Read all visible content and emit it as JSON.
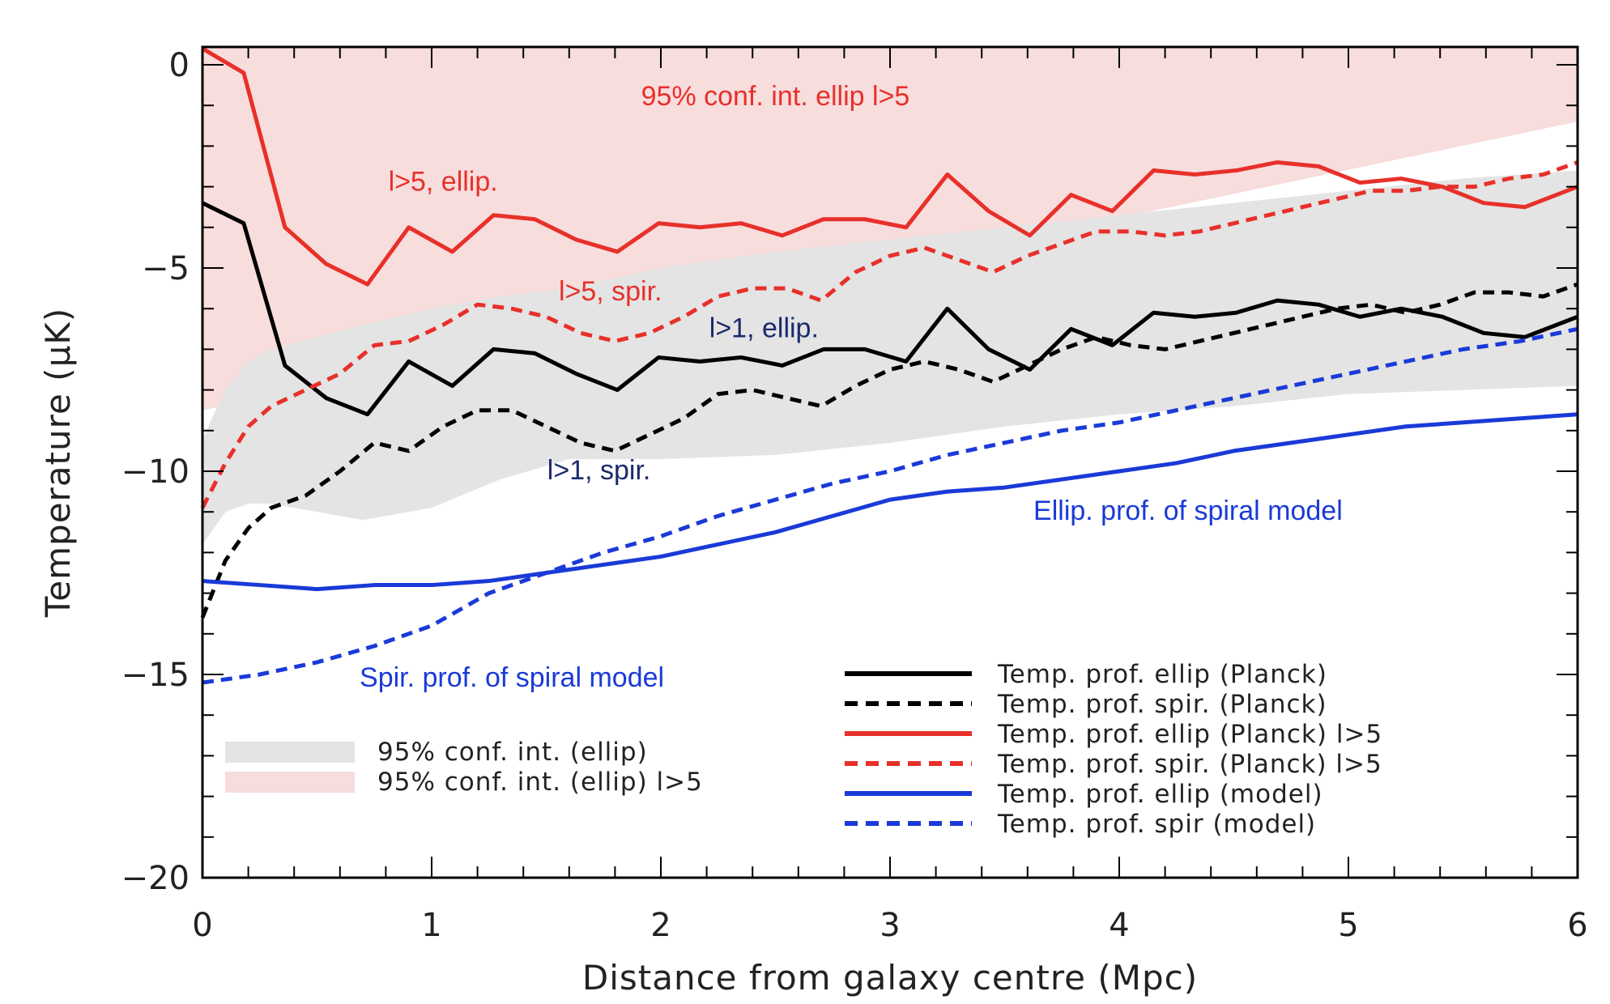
{
  "chart_data": {
    "type": "line",
    "title": "",
    "xlabel": "Distance from galaxy centre (Mpc)",
    "ylabel": "Temperature  (μK)",
    "xlim": [
      0,
      6
    ],
    "ylim": [
      -20,
      0.5
    ],
    "xticks": [
      0,
      1,
      2,
      3,
      4,
      5,
      6
    ],
    "yticks": [
      0,
      -5,
      -10,
      -15,
      -20
    ],
    "xtick_labels": [
      "0",
      "1",
      "2",
      "3",
      "4",
      "5",
      "6"
    ],
    "ytick_labels": [
      "0",
      "−5",
      "−10",
      "−15",
      "−20"
    ],
    "grid": false,
    "bands": [
      {
        "name": "95% conf. int. (ellip) l>5",
        "color": "#f8dddd",
        "x": [
          0,
          6
        ],
        "upper": [
          0.5,
          0.5
        ],
        "lower": [
          -8.5,
          -1.4
        ]
      },
      {
        "name": "95% conf. int. (ellip)",
        "color": "#e4e4e4",
        "x": [
          0,
          0.1,
          0.2,
          0.3,
          0.5,
          0.7,
          1.0,
          1.3,
          1.6,
          2.0,
          2.5,
          3.0,
          3.5,
          4.0,
          4.5,
          5.0,
          5.5,
          6.0
        ],
        "upper": [
          -9.2,
          -8.0,
          -7.3,
          -7.0,
          -6.7,
          -6.4,
          -6.0,
          -5.7,
          -5.5,
          -5.0,
          -4.6,
          -4.3,
          -4.0,
          -3.7,
          -3.4,
          -3.1,
          -2.8,
          -2.6
        ],
        "lower": [
          -11.8,
          -11.0,
          -10.8,
          -10.8,
          -11.0,
          -11.2,
          -10.9,
          -10.2,
          -9.7,
          -9.7,
          -9.6,
          -9.3,
          -8.9,
          -8.6,
          -8.4,
          -8.1,
          -8.0,
          -7.9
        ]
      }
    ],
    "series": [
      {
        "name": "Temp. prof. ellip (Planck)",
        "color": "#000000",
        "dash": false,
        "x": [
          0,
          0.18,
          0.36,
          0.54,
          0.72,
          0.9,
          1.09,
          1.27,
          1.45,
          1.63,
          1.81,
          1.99,
          2.17,
          2.35,
          2.53,
          2.71,
          2.89,
          3.07,
          3.25,
          3.43,
          3.61,
          3.79,
          3.97,
          4.15,
          4.33,
          4.51,
          4.69,
          4.87,
          5.05,
          5.23,
          5.41,
          5.59,
          5.77,
          6.0
        ],
        "y": [
          -3.4,
          -3.9,
          -7.4,
          -8.2,
          -8.6,
          -7.3,
          -7.9,
          -7.0,
          -7.1,
          -7.6,
          -8.0,
          -7.2,
          -7.3,
          -7.2,
          -7.4,
          -7.0,
          -7.0,
          -7.3,
          -6.0,
          -7.0,
          -7.5,
          -6.5,
          -6.9,
          -6.1,
          -6.2,
          -6.1,
          -5.8,
          -5.9,
          -6.2,
          -6.0,
          -6.2,
          -6.6,
          -6.7,
          -6.2
        ]
      },
      {
        "name": "Temp. prof. spir. (Planck)",
        "color": "#000000",
        "dash": true,
        "x": [
          0,
          0.1,
          0.2,
          0.3,
          0.45,
          0.6,
          0.75,
          0.9,
          1.05,
          1.2,
          1.35,
          1.5,
          1.65,
          1.8,
          1.95,
          2.1,
          2.25,
          2.4,
          2.55,
          2.7,
          2.85,
          3.0,
          3.15,
          3.3,
          3.45,
          3.6,
          3.75,
          3.9,
          4.05,
          4.2,
          4.35,
          4.5,
          4.65,
          4.8,
          4.95,
          5.1,
          5.25,
          5.4,
          5.55,
          5.7,
          5.85,
          6.0
        ],
        "y": [
          -13.6,
          -12.2,
          -11.4,
          -10.9,
          -10.6,
          -10.0,
          -9.3,
          -9.5,
          -8.9,
          -8.5,
          -8.5,
          -8.9,
          -9.3,
          -9.5,
          -9.1,
          -8.7,
          -8.1,
          -8.0,
          -8.2,
          -8.4,
          -7.9,
          -7.5,
          -7.3,
          -7.5,
          -7.8,
          -7.4,
          -7.0,
          -6.7,
          -6.9,
          -7.0,
          -6.8,
          -6.6,
          -6.4,
          -6.2,
          -6.0,
          -5.9,
          -6.1,
          -5.9,
          -5.6,
          -5.6,
          -5.7,
          -5.4
        ]
      },
      {
        "name": "Temp. prof. ellip (Planck) l>5",
        "color": "#e8302a",
        "dash": false,
        "x": [
          0,
          0.18,
          0.36,
          0.54,
          0.72,
          0.9,
          1.09,
          1.27,
          1.45,
          1.63,
          1.81,
          1.99,
          2.17,
          2.35,
          2.53,
          2.71,
          2.89,
          3.07,
          3.25,
          3.43,
          3.61,
          3.79,
          3.97,
          4.15,
          4.33,
          4.51,
          4.69,
          4.87,
          5.05,
          5.23,
          5.41,
          5.59,
          5.77,
          6.0
        ],
        "y": [
          0.4,
          -0.2,
          -4.0,
          -4.9,
          -5.4,
          -4.0,
          -4.6,
          -3.7,
          -3.8,
          -4.3,
          -4.6,
          -3.9,
          -4.0,
          -3.9,
          -4.2,
          -3.8,
          -3.8,
          -4.0,
          -2.7,
          -3.6,
          -4.2,
          -3.2,
          -3.6,
          -2.6,
          -2.7,
          -2.6,
          -2.4,
          -2.5,
          -2.9,
          -2.8,
          -3.0,
          -3.4,
          -3.5,
          -3.0
        ]
      },
      {
        "name": "Temp. prof. spir. (Planck) l>5",
        "color": "#e8302a",
        "dash": true,
        "x": [
          0,
          0.1,
          0.2,
          0.3,
          0.45,
          0.6,
          0.75,
          0.9,
          1.05,
          1.2,
          1.35,
          1.5,
          1.65,
          1.8,
          1.95,
          2.1,
          2.25,
          2.4,
          2.55,
          2.7,
          2.85,
          3.0,
          3.15,
          3.3,
          3.45,
          3.6,
          3.75,
          3.9,
          4.05,
          4.2,
          4.35,
          4.5,
          4.65,
          4.8,
          4.95,
          5.1,
          5.25,
          5.4,
          5.55,
          5.7,
          5.85,
          6.0
        ],
        "y": [
          -10.9,
          -9.8,
          -8.9,
          -8.4,
          -8.0,
          -7.6,
          -6.9,
          -6.8,
          -6.4,
          -5.9,
          -6.0,
          -6.2,
          -6.6,
          -6.8,
          -6.6,
          -6.2,
          -5.7,
          -5.5,
          -5.5,
          -5.8,
          -5.1,
          -4.7,
          -4.5,
          -4.8,
          -5.1,
          -4.7,
          -4.4,
          -4.1,
          -4.1,
          -4.2,
          -4.1,
          -3.9,
          -3.7,
          -3.5,
          -3.3,
          -3.1,
          -3.1,
          -3.0,
          -3.0,
          -2.8,
          -2.7,
          -2.4
        ]
      },
      {
        "name": "Temp. prof. ellip (model)",
        "color": "#1a3ad8",
        "dash": false,
        "x": [
          0,
          0.25,
          0.5,
          0.75,
          1.0,
          1.25,
          1.5,
          1.75,
          2.0,
          2.25,
          2.5,
          2.75,
          3.0,
          3.25,
          3.5,
          3.75,
          4.0,
          4.25,
          4.5,
          4.75,
          5.0,
          5.25,
          5.5,
          5.75,
          6.0
        ],
        "y": [
          -12.7,
          -12.8,
          -12.9,
          -12.8,
          -12.8,
          -12.7,
          -12.5,
          -12.3,
          -12.1,
          -11.8,
          -11.5,
          -11.1,
          -10.7,
          -10.5,
          -10.4,
          -10.2,
          -10.0,
          -9.8,
          -9.5,
          -9.3,
          -9.1,
          -8.9,
          -8.8,
          -8.7,
          -8.6
        ]
      },
      {
        "name": "Temp. prof. spir (model)",
        "color": "#1a3ad8",
        "dash": true,
        "x": [
          0,
          0.25,
          0.5,
          0.75,
          1.0,
          1.25,
          1.5,
          1.75,
          2.0,
          2.25,
          2.5,
          2.75,
          3.0,
          3.25,
          3.5,
          3.75,
          4.0,
          4.25,
          4.5,
          4.75,
          5.0,
          5.25,
          5.5,
          5.75,
          6.0
        ],
        "y": [
          -15.2,
          -15.0,
          -14.7,
          -14.3,
          -13.8,
          -13.0,
          -12.5,
          -12.0,
          -11.6,
          -11.1,
          -10.7,
          -10.3,
          -10.0,
          -9.6,
          -9.3,
          -9.0,
          -8.8,
          -8.5,
          -8.2,
          -7.9,
          -7.6,
          -7.3,
          -7.0,
          -6.8,
          -6.5
        ]
      }
    ],
    "legend_lines": [
      {
        "label": "Temp. prof. ellip (Planck)",
        "color": "#000000",
        "dash": false
      },
      {
        "label": "Temp. prof. spir. (Planck)",
        "color": "#000000",
        "dash": true
      },
      {
        "label": "Temp. prof. ellip (Planck) l>5",
        "color": "#e8302a",
        "dash": false
      },
      {
        "label": "Temp. prof. spir. (Planck) l>5",
        "color": "#e8302a",
        "dash": true
      },
      {
        "label": "Temp. prof. ellip (model)",
        "color": "#1a3ad8",
        "dash": false
      },
      {
        "label": "Temp. prof. spir (model)",
        "color": "#1a3ad8",
        "dash": true
      }
    ],
    "legend_bands": [
      {
        "label": "95% conf. int. (ellip)",
        "color": "#e4e4e4"
      },
      {
        "label": "95% conf. int. (ellip) l>5",
        "color": "#f8dddd"
      }
    ],
    "annotations": [
      {
        "text": "95% conf. int. ellip l>5",
        "color": "#e8302a",
        "x": 2.5,
        "y": -1.0
      },
      {
        "text": "l>5, ellip.",
        "color": "#e8302a",
        "x": 1.05,
        "y": -3.1
      },
      {
        "text": "l>5, spir.",
        "color": "#e8302a",
        "x": 1.78,
        "y": -5.8
      },
      {
        "text": "l>1, ellip.",
        "color": "#1a2a6c",
        "x": 2.45,
        "y": -6.7
      },
      {
        "text": "l>1, spir.",
        "color": "#1a2a6c",
        "x": 1.73,
        "y": -10.2
      },
      {
        "text": "Ellip. prof. of spiral model",
        "color": "#1a3ad8",
        "x": 4.3,
        "y": -11.2
      },
      {
        "text": "Spir. prof. of spiral model",
        "color": "#1a3ad8",
        "x": 1.35,
        "y": -15.3
      }
    ]
  }
}
